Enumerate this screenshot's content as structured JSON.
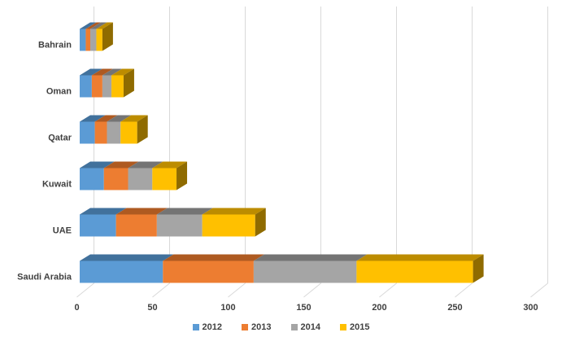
{
  "chart_data": {
    "type": "bar",
    "orientation": "horizontal",
    "stacked": true,
    "style": "3d",
    "title": "",
    "xlabel": "",
    "ylabel": "",
    "categories": [
      "Bahrain",
      "Oman",
      "Qatar",
      "Kuwait",
      "UAE",
      "Saudi Arabia"
    ],
    "series": [
      {
        "name": "2012",
        "color": "#5B9BD5",
        "top_color": "#41719C",
        "side_color": "#2D5986",
        "values": [
          4,
          8,
          10,
          16,
          24,
          55
        ]
      },
      {
        "name": "2013",
        "color": "#ED7D31",
        "top_color": "#AE5A21",
        "side_color": "#8D4A1B",
        "values": [
          3,
          7,
          8,
          16,
          27,
          60
        ]
      },
      {
        "name": "2014",
        "color": "#A5A5A5",
        "top_color": "#747474",
        "side_color": "#5E5E5E",
        "values": [
          4,
          6,
          9,
          16,
          30,
          68
        ]
      },
      {
        "name": "2015",
        "color": "#FFC000",
        "top_color": "#BC8C00",
        "side_color": "#8F6B00",
        "values": [
          4,
          8,
          11,
          16,
          35,
          77
        ]
      }
    ],
    "totals": [
      15,
      29,
      38,
      64,
      116,
      260
    ],
    "x_ticks": [
      0,
      50,
      100,
      150,
      200,
      250,
      300
    ],
    "xlim": [
      0,
      300
    ],
    "grid": true,
    "gridline_color": "#D9D9D9",
    "text_color": "#404040",
    "background": "#FFFFFF",
    "legend_position": "bottom"
  }
}
